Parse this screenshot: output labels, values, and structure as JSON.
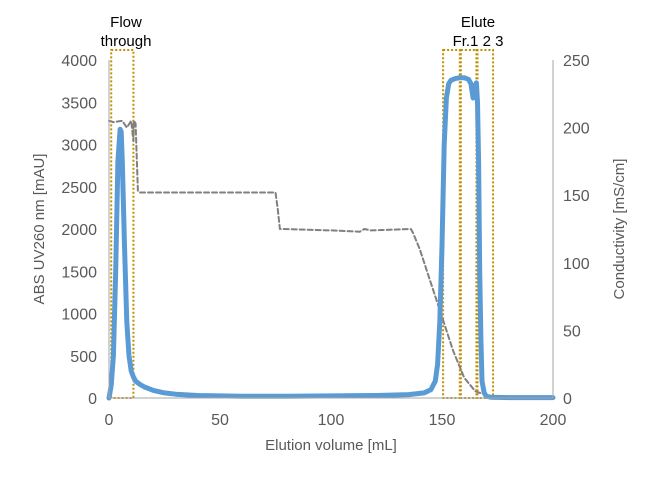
{
  "chart_data": {
    "type": "line",
    "xlabel": "Elution volume  [mL]",
    "ylabel_left": "ABS UV260  nm [mAU]",
    "ylabel_right": "Conductivity  [mS/cm]",
    "xlim": [
      0,
      200
    ],
    "ylim_left": [
      0,
      4000
    ],
    "ylim_right": [
      0,
      250
    ],
    "x_ticks": [
      "0",
      "50",
      "100",
      "150",
      "200"
    ],
    "y_left_ticks": [
      "0",
      "500",
      "1000",
      "1500",
      "2000",
      "2500",
      "3000",
      "3500",
      "4000"
    ],
    "y_right_ticks": [
      "0",
      "50",
      "100",
      "150",
      "200",
      "250"
    ],
    "grid": false,
    "colors": {
      "uv": "#5b9bd5",
      "conductivity": "#808080",
      "fraction_box": "#bf9000",
      "axis": "#a6a6a6"
    },
    "annotations": {
      "flow_through": [
        "Flow",
        "through"
      ],
      "elute": [
        "Elute",
        "Fr.1 2 3"
      ]
    },
    "series": [
      {
        "axis": "left",
        "style": "solid",
        "x": [
          0,
          1,
          2,
          3,
          4,
          5,
          5.5,
          6,
          7,
          8,
          9,
          10,
          11,
          12,
          14,
          16,
          18,
          20,
          25,
          30,
          40,
          60,
          80,
          100,
          120,
          135,
          142,
          145,
          147,
          148,
          149,
          150,
          151,
          152,
          153,
          154,
          156,
          158,
          160,
          162,
          163,
          164,
          165,
          165.5,
          166,
          166.5,
          167,
          167.5,
          168,
          169,
          170,
          172,
          180,
          200
        ],
        "y": [
          0,
          150,
          500,
          1500,
          2800,
          3180,
          3150,
          2800,
          1800,
          900,
          500,
          320,
          250,
          200,
          160,
          130,
          110,
          90,
          60,
          45,
          30,
          20,
          20,
          25,
          30,
          40,
          60,
          100,
          200,
          400,
          900,
          1800,
          3000,
          3550,
          3720,
          3760,
          3780,
          3790,
          3790,
          3770,
          3720,
          3550,
          3700,
          3730,
          3500,
          2800,
          1500,
          700,
          200,
          60,
          20,
          10,
          5,
          5
        ]
      },
      {
        "axis": "right",
        "style": "dashed",
        "x": [
          0,
          2,
          6,
          8,
          10,
          11,
          11.2,
          12,
          13,
          14,
          75,
          76,
          77,
          78,
          100,
          113,
          115,
          118,
          136,
          137,
          140,
          145,
          150,
          155,
          160,
          165,
          170,
          172,
          200
        ],
        "y": [
          205,
          204,
          205,
          200,
          205,
          190,
          205,
          203,
          153,
          152,
          152,
          140,
          125,
          125,
          124,
          123,
          125,
          124,
          125,
          122,
          110,
          85,
          60,
          35,
          15,
          5,
          2,
          1,
          1
        ]
      }
    ],
    "fraction_regions": [
      {
        "label": "Flow through",
        "x_start": 1,
        "x_end": 11
      },
      {
        "label": "Fr.1",
        "x_start": 150.5,
        "x_end": 158
      },
      {
        "label": "Fr.2",
        "x_start": 158.5,
        "x_end": 166
      },
      {
        "label": "Fr.3",
        "x_start": 165.5,
        "x_end": 173
      }
    ]
  }
}
